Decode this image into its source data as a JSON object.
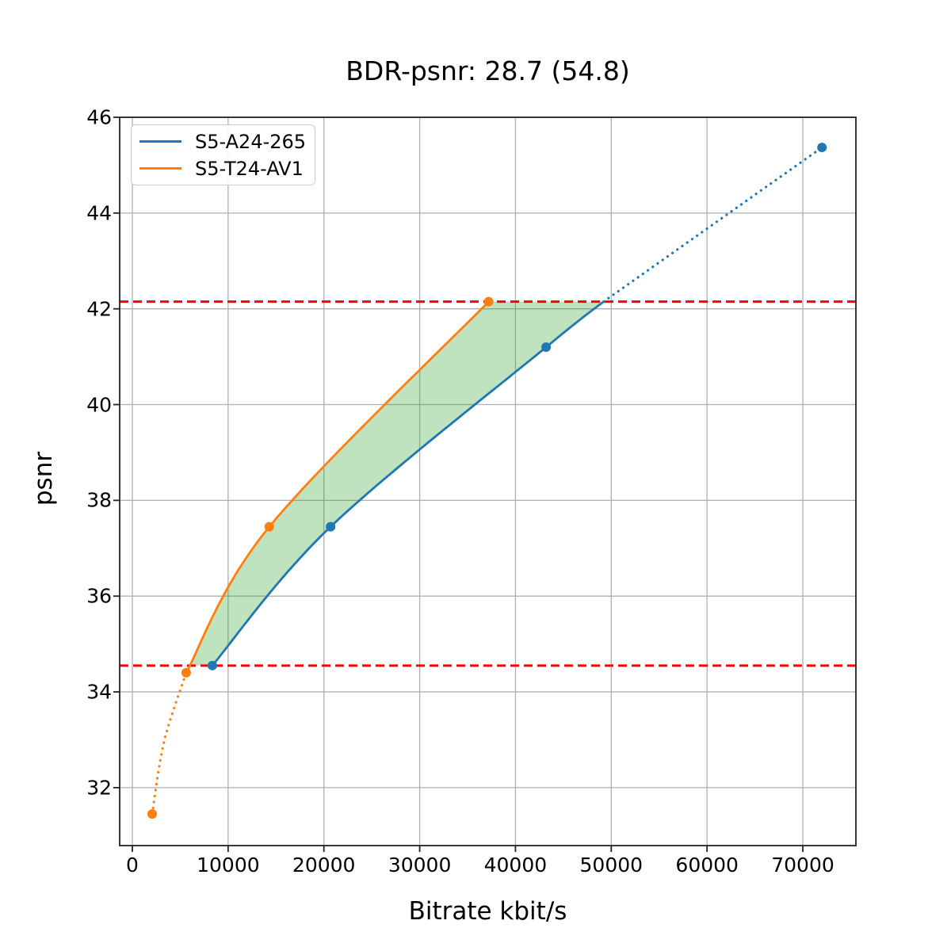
{
  "chart_data": {
    "type": "line",
    "title": "BDR-psnr: 28.7 (54.8)",
    "xlabel": "Bitrate kbit/s",
    "ylabel": "psnr",
    "xlim": [
      -1324,
      75543
    ],
    "ylim": [
      30.79,
      46
    ],
    "grid": true,
    "grid_color": "#b0b0b0",
    "legend_position": "upper left",
    "x_ticks": [
      0,
      10000,
      20000,
      30000,
      40000,
      50000,
      60000,
      70000
    ],
    "x_tick_labels": [
      "0",
      "10000",
      "20000",
      "30000",
      "40000",
      "50000",
      "60000",
      "70000"
    ],
    "y_ticks": [
      32,
      34,
      36,
      38,
      40,
      42,
      44,
      46
    ],
    "y_tick_labels": [
      "32",
      "34",
      "36",
      "38",
      "40",
      "42",
      "44",
      "46"
    ],
    "series": [
      {
        "name": "S5-A24-265",
        "color": "#1f77b4",
        "marker": "circle",
        "points": [
          [
            8350,
            34.55
          ],
          [
            20700,
            37.45
          ],
          [
            43200,
            41.2
          ],
          [
            72000,
            45.37
          ]
        ],
        "solid_curve": [
          [
            8350,
            34.55
          ],
          [
            20700,
            37.45
          ],
          [
            43200,
            41.2
          ],
          [
            49200,
            42.15
          ]
        ],
        "dotted_curve": [
          [
            49200,
            42.15
          ],
          [
            72000,
            45.37
          ]
        ]
      },
      {
        "name": "S5-T24-AV1",
        "color": "#ff7f0e",
        "marker": "circle",
        "points": [
          [
            2070,
            31.45
          ],
          [
            5620,
            34.4
          ],
          [
            14300,
            37.45
          ],
          [
            37200,
            42.15
          ]
        ],
        "solid_curve": [
          [
            5620,
            34.4
          ],
          [
            14300,
            37.45
          ],
          [
            37200,
            42.15
          ]
        ],
        "dotted_curve": [
          [
            2070,
            31.45
          ],
          [
            3300,
            32.95
          ],
          [
            5620,
            34.4
          ]
        ]
      }
    ],
    "hlines": [
      {
        "y": 42.15,
        "color": "#ff0000",
        "style": "dashed"
      },
      {
        "y": 34.55,
        "color": "#ff0000",
        "style": "dashed"
      }
    ],
    "shaded_region": {
      "fill_color": "#2ca02c",
      "opacity": 0.3,
      "upper_psnr": 42.15,
      "lower_psnr": 34.55,
      "left_curve": [
        [
          6100,
          34.55
        ],
        [
          14300,
          37.45
        ],
        [
          37200,
          42.15
        ]
      ],
      "top_edge_end": [
        49200,
        42.15
      ],
      "right_curve": [
        [
          8350,
          34.55
        ],
        [
          20700,
          37.45
        ],
        [
          43200,
          41.2
        ],
        [
          49200,
          42.15
        ]
      ]
    }
  }
}
